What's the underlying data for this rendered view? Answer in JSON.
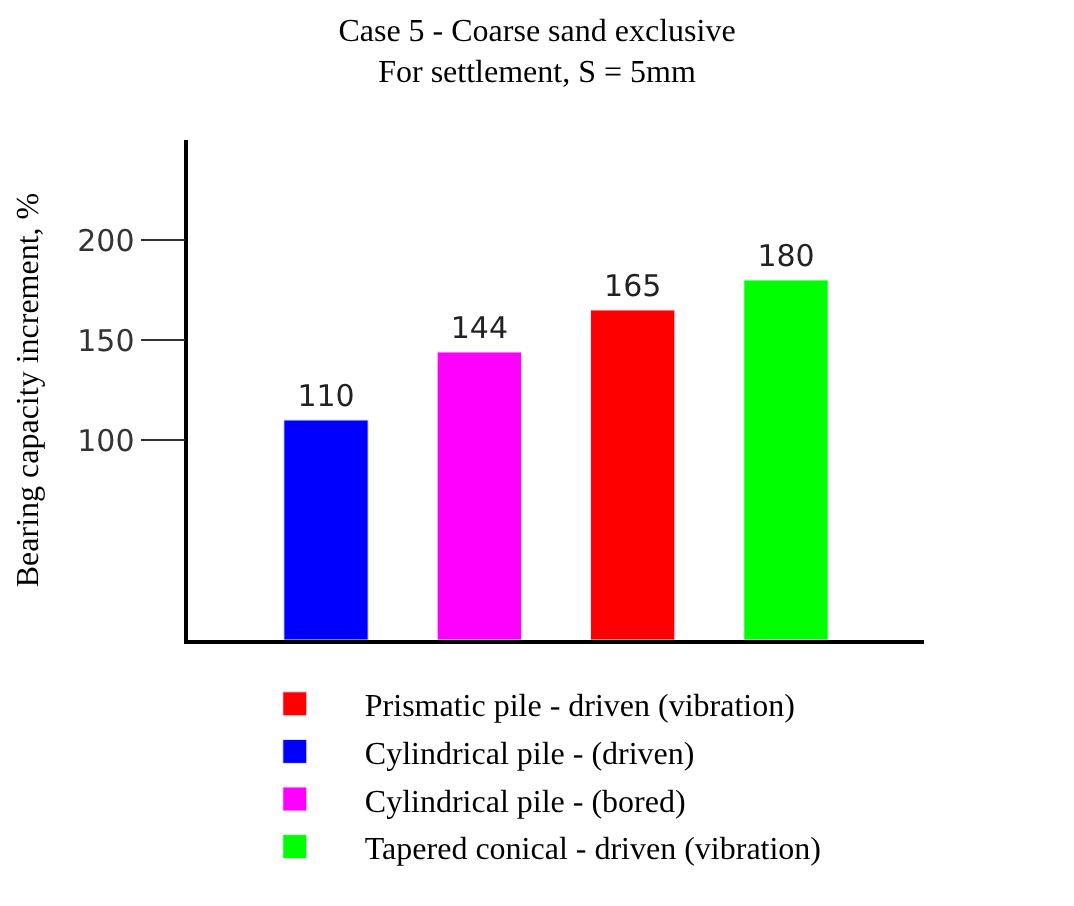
{
  "chart_data": {
    "type": "bar",
    "title": "Case 5 - Coarse sand exclusive",
    "subtitle": "For settlement, S = 5mm",
    "ylabel": "Bearing capacity increment, %",
    "categories": [
      null,
      null,
      null,
      null
    ],
    "series": [
      {
        "name": "Prismatic pile - driven (vibration)",
        "color": "#ff0000",
        "values": [
          null,
          null,
          165,
          null
        ]
      },
      {
        "name": "Cylindrical pile - (driven)",
        "color": "#0000ff",
        "values": [
          110,
          null,
          null,
          null
        ]
      },
      {
        "name": "Cylindrical pile - (bored)",
        "color": "#ff00ff",
        "values": [
          null,
          144,
          null,
          null
        ]
      },
      {
        "name": "Tapered conical - driven (vibration)",
        "color": "#00ff00",
        "values": [
          null,
          null,
          null,
          180
        ]
      }
    ],
    "ylim": [
      0,
      250
    ],
    "yticks": [
      100,
      150,
      200
    ],
    "data_labels": true,
    "legend": "bottom"
  }
}
